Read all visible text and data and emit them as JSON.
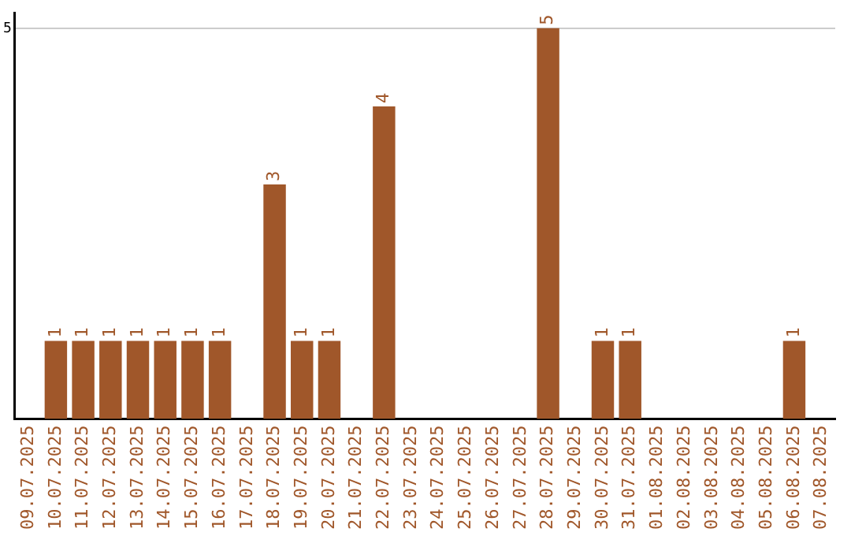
{
  "chart_data": {
    "type": "bar",
    "categories": [
      "09.07.2025",
      "10.07.2025",
      "11.07.2025",
      "12.07.2025",
      "13.07.2025",
      "14.07.2025",
      "15.07.2025",
      "16.07.2025",
      "17.07.2025",
      "18.07.2025",
      "19.07.2025",
      "20.07.2025",
      "21.07.2025",
      "22.07.2025",
      "23.07.2025",
      "24.07.2025",
      "25.07.2025",
      "26.07.2025",
      "27.07.2025",
      "28.07.2025",
      "29.07.2025",
      "30.07.2025",
      "31.07.2025",
      "01.08.2025",
      "02.08.2025",
      "03.08.2025",
      "04.08.2025",
      "05.08.2025",
      "06.08.2025",
      "07.08.2025"
    ],
    "values": [
      0,
      1,
      1,
      1,
      1,
      1,
      1,
      1,
      0,
      3,
      1,
      1,
      0,
      4,
      0,
      0,
      0,
      0,
      0,
      5,
      0,
      1,
      1,
      0,
      0,
      0,
      0,
      0,
      1,
      0
    ],
    "value_labels": [
      null,
      "1",
      "1",
      "1",
      "1",
      "1",
      "1",
      "1",
      null,
      "3",
      "1",
      "1",
      null,
      "4",
      null,
      null,
      null,
      null,
      null,
      "5",
      null,
      "1",
      "1",
      null,
      null,
      null,
      null,
      null,
      "1",
      null
    ],
    "color": "#a0572a",
    "ylim": [
      0,
      5.2
    ],
    "yticks": [
      5
    ],
    "grid": "y",
    "legend": false
  }
}
